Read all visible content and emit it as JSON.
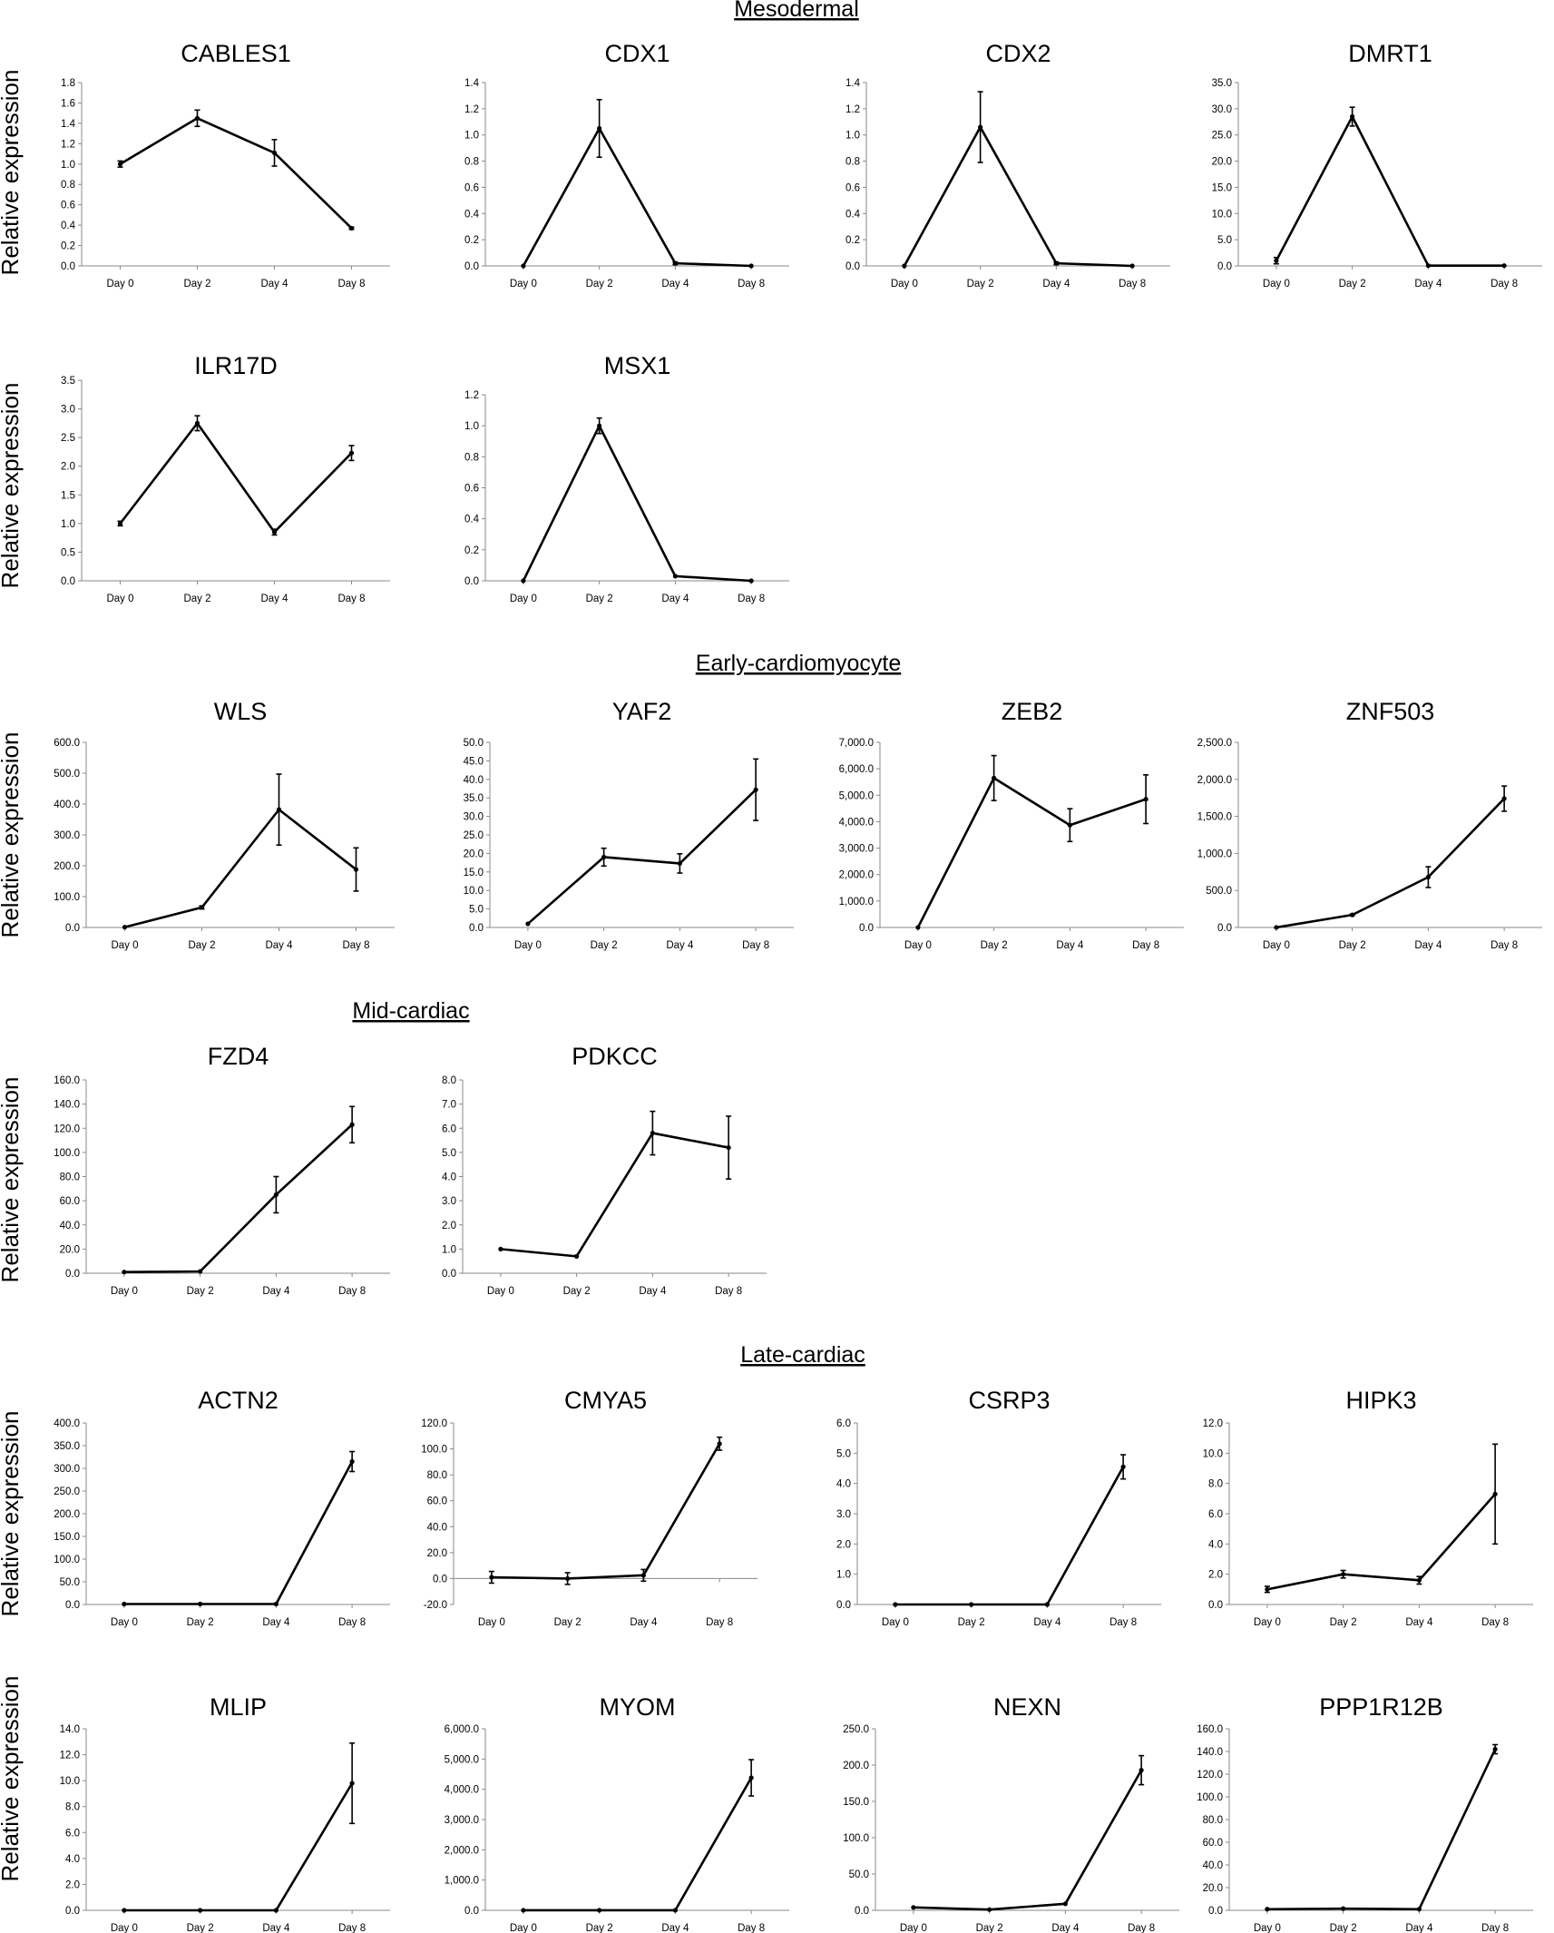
{
  "sections": [
    "Mesodermal",
    "Early-cardiomyocyte",
    "Mid-cardiac",
    "Late-cardiac"
  ],
  "ylabel": "Relative expression",
  "chart_data": [
    {
      "type": "line",
      "title": "CABLES1",
      "categories": [
        "Day 0",
        "Day 2",
        "Day 4",
        "Day 8"
      ],
      "values": [
        1.0,
        1.45,
        1.11,
        0.37
      ],
      "errors": [
        0.03,
        0.08,
        0.13,
        0.01
      ],
      "ylim": [
        0,
        1.8
      ],
      "yticks": [
        "0.0",
        "0.2",
        "0.4",
        "0.6",
        "0.8",
        "1.0",
        "1.2",
        "1.4",
        "1.6",
        "1.8"
      ]
    },
    {
      "type": "line",
      "title": "CDX1",
      "categories": [
        "Day 0",
        "Day 2",
        "Day 4",
        "Day 8"
      ],
      "values": [
        0.0,
        1.05,
        0.02,
        0.0
      ],
      "errors": [
        0.0,
        0.22,
        0.01,
        0.0
      ],
      "ylim": [
        0,
        1.4
      ],
      "yticks": [
        "0.0",
        "0.2",
        "0.4",
        "0.6",
        "0.8",
        "1.0",
        "1.2",
        "1.4"
      ]
    },
    {
      "type": "line",
      "title": "CDX2",
      "categories": [
        "Day 0",
        "Day 2",
        "Day 4",
        "Day 8"
      ],
      "values": [
        0.0,
        1.06,
        0.02,
        0.0
      ],
      "errors": [
        0.0,
        0.27,
        0.01,
        0.0
      ],
      "ylim": [
        0,
        1.4
      ],
      "yticks": [
        "0.0",
        "0.2",
        "0.4",
        "0.6",
        "0.8",
        "1.0",
        "1.2",
        "1.4"
      ]
    },
    {
      "type": "line",
      "title": "DMRT1",
      "categories": [
        "Day 0",
        "Day 2",
        "Day 4",
        "Day 8"
      ],
      "values": [
        1.0,
        28.5,
        0.05,
        0.05
      ],
      "errors": [
        0.6,
        1.8,
        0.0,
        0.0
      ],
      "ylim": [
        0,
        35
      ],
      "yticks": [
        "0.0",
        "5.0",
        "10.0",
        "15.0",
        "20.0",
        "25.0",
        "30.0",
        "35.0"
      ]
    },
    {
      "type": "line",
      "title": "ILR17D",
      "categories": [
        "Day 0",
        "Day 2",
        "Day 4",
        "Day 8"
      ],
      "values": [
        1.0,
        2.75,
        0.85,
        2.23
      ],
      "errors": [
        0.04,
        0.13,
        0.05,
        0.13
      ],
      "ylim": [
        0,
        3.5
      ],
      "yticks": [
        "0.0",
        "0.5",
        "1.0",
        "1.5",
        "2.0",
        "2.5",
        "3.0",
        "3.5"
      ]
    },
    {
      "type": "line",
      "title": "MSX1",
      "categories": [
        "Day 0",
        "Day 2",
        "Day 4",
        "Day 8"
      ],
      "values": [
        0.0,
        1.0,
        0.03,
        0.0
      ],
      "errors": [
        0.0,
        0.05,
        0.0,
        0.0
      ],
      "ylim": [
        0,
        1.2
      ],
      "yticks": [
        "0.0",
        "0.2",
        "0.4",
        "0.6",
        "0.8",
        "1.0",
        "1.2"
      ]
    },
    {
      "type": "line",
      "title": "WLS",
      "categories": [
        "Day 0",
        "Day 2",
        "Day 4",
        "Day 8"
      ],
      "values": [
        1,
        65,
        382,
        188
      ],
      "errors": [
        0,
        5,
        115,
        70
      ],
      "ylim": [
        0,
        600
      ],
      "yticks": [
        "0.0",
        "100.0",
        "200.0",
        "300.0",
        "400.0",
        "500.0",
        "600.0"
      ]
    },
    {
      "type": "line",
      "title": "YAF2",
      "categories": [
        "Day 0",
        "Day 2",
        "Day 4",
        "Day 8"
      ],
      "values": [
        1.0,
        19.0,
        17.3,
        37.2
      ],
      "errors": [
        0.0,
        2.4,
        2.6,
        8.3
      ],
      "ylim": [
        0,
        50
      ],
      "yticks": [
        "0.0",
        "5.0",
        "10.0",
        "15.0",
        "20.0",
        "25.0",
        "30.0",
        "35.0",
        "40.0",
        "45.0",
        "50.0"
      ]
    },
    {
      "type": "line",
      "title": "ZEB2",
      "categories": [
        "Day 0",
        "Day 2",
        "Day 4",
        "Day 8"
      ],
      "values": [
        1,
        5650,
        3870,
        4850
      ],
      "errors": [
        0,
        850,
        620,
        920
      ],
      "ylim": [
        0,
        7000
      ],
      "yticks": [
        "0.0",
        "1,000.0",
        "2,000.0",
        "3,000.0",
        "4,000.0",
        "5,000.0",
        "6,000.0",
        "7,000.0"
      ]
    },
    {
      "type": "line",
      "title": "ZNF503",
      "categories": [
        "Day 0",
        "Day 2",
        "Day 4",
        "Day 8"
      ],
      "values": [
        1,
        170,
        680,
        1740
      ],
      "errors": [
        0,
        10,
        140,
        170
      ],
      "ylim": [
        0,
        2500
      ],
      "yticks": [
        "0.0",
        "500.0",
        "1,000.0",
        "1,500.0",
        "2,000.0",
        "2,500.0"
      ]
    },
    {
      "type": "line",
      "title": "FZD4",
      "categories": [
        "Day 0",
        "Day 2",
        "Day 4",
        "Day 8"
      ],
      "values": [
        1.0,
        1.5,
        65,
        123
      ],
      "errors": [
        0,
        0,
        15,
        15
      ],
      "ylim": [
        0,
        160
      ],
      "yticks": [
        "0.0",
        "20.0",
        "40.0",
        "60.0",
        "80.0",
        "100.0",
        "120.0",
        "140.0",
        "160.0"
      ]
    },
    {
      "type": "line",
      "title": "PDKCC",
      "categories": [
        "Day 0",
        "Day 2",
        "Day 4",
        "Day 8"
      ],
      "values": [
        1.0,
        0.7,
        5.8,
        5.2
      ],
      "errors": [
        0.0,
        0.0,
        0.9,
        1.3
      ],
      "ylim": [
        0,
        8
      ],
      "yticks": [
        "0.0",
        "1.0",
        "2.0",
        "3.0",
        "4.0",
        "5.0",
        "6.0",
        "7.0",
        "8.0"
      ]
    },
    {
      "type": "line",
      "title": "ACTN2",
      "categories": [
        "Day 0",
        "Day 2",
        "Day 4",
        "Day 8"
      ],
      "values": [
        1,
        1,
        1,
        315
      ],
      "errors": [
        0,
        0,
        0,
        22
      ],
      "ylim": [
        0,
        400
      ],
      "yticks": [
        "0.0",
        "50.0",
        "100.0",
        "150.0",
        "200.0",
        "250.0",
        "300.0",
        "350.0",
        "400.0"
      ]
    },
    {
      "type": "line",
      "title": "CMYA5",
      "categories": [
        "Day 0",
        "Day 2",
        "Day 4",
        "Day 8"
      ],
      "values": [
        1,
        0,
        2.5,
        104
      ],
      "errors": [
        4.5,
        4.5,
        4.5,
        5
      ],
      "ylim": [
        -20,
        120
      ],
      "yticks": [
        "-20.0",
        "0.0",
        "20.0",
        "40.0",
        "60.0",
        "80.0",
        "100.0",
        "120.0"
      ]
    },
    {
      "type": "line",
      "title": "CSRP3",
      "categories": [
        "Day 0",
        "Day 2",
        "Day 4",
        "Day 8"
      ],
      "values": [
        0.0,
        0.0,
        0.0,
        4.55
      ],
      "errors": [
        0,
        0,
        0,
        0.4
      ],
      "ylim": [
        0,
        6
      ],
      "yticks": [
        "0.0",
        "1.0",
        "2.0",
        "3.0",
        "4.0",
        "5.0",
        "6.0"
      ]
    },
    {
      "type": "line",
      "title": "HIPK3",
      "categories": [
        "Day 0",
        "Day 2",
        "Day 4",
        "Day 8"
      ],
      "values": [
        1.0,
        2.0,
        1.6,
        7.3
      ],
      "errors": [
        0.2,
        0.25,
        0.25,
        3.3
      ],
      "ylim": [
        0,
        12
      ],
      "yticks": [
        "0.0",
        "2.0",
        "4.0",
        "6.0",
        "8.0",
        "10.0",
        "12.0"
      ]
    },
    {
      "type": "line",
      "title": "MLIP",
      "categories": [
        "Day 0",
        "Day 2",
        "Day 4",
        "Day 8"
      ],
      "values": [
        0.0,
        0.0,
        0.0,
        9.8
      ],
      "errors": [
        0,
        0,
        0,
        3.1
      ],
      "ylim": [
        0,
        14
      ],
      "yticks": [
        "0.0",
        "2.0",
        "4.0",
        "6.0",
        "8.0",
        "10.0",
        "12.0",
        "14.0"
      ]
    },
    {
      "type": "line",
      "title": "MYOM",
      "categories": [
        "Day 0",
        "Day 2",
        "Day 4",
        "Day 8"
      ],
      "values": [
        1,
        1,
        1,
        4380
      ],
      "errors": [
        0,
        0,
        0,
        600
      ],
      "ylim": [
        0,
        6000
      ],
      "yticks": [
        "0.0",
        "1,000.0",
        "2,000.0",
        "3,000.0",
        "4,000.0",
        "5,000.0",
        "6,000.0"
      ]
    },
    {
      "type": "line",
      "title": "NEXN",
      "categories": [
        "Day 0",
        "Day 2",
        "Day 4",
        "Day 8"
      ],
      "values": [
        4,
        1,
        9,
        193
      ],
      "errors": [
        0,
        0,
        0,
        20
      ],
      "ylim": [
        0,
        250
      ],
      "yticks": [
        "0.0",
        "50.0",
        "100.0",
        "150.0",
        "200.0",
        "250.0"
      ]
    },
    {
      "type": "line",
      "title": "PPP1R12B",
      "categories": [
        "Day 0",
        "Day 2",
        "Day 4",
        "Day 8"
      ],
      "values": [
        1,
        1.5,
        1,
        142
      ],
      "errors": [
        0,
        0,
        0,
        4
      ],
      "ylim": [
        0,
        160
      ],
      "yticks": [
        "0.0",
        "20.0",
        "40.0",
        "60.0",
        "80.0",
        "100.0",
        "120.0",
        "140.0",
        "160.0"
      ]
    }
  ]
}
